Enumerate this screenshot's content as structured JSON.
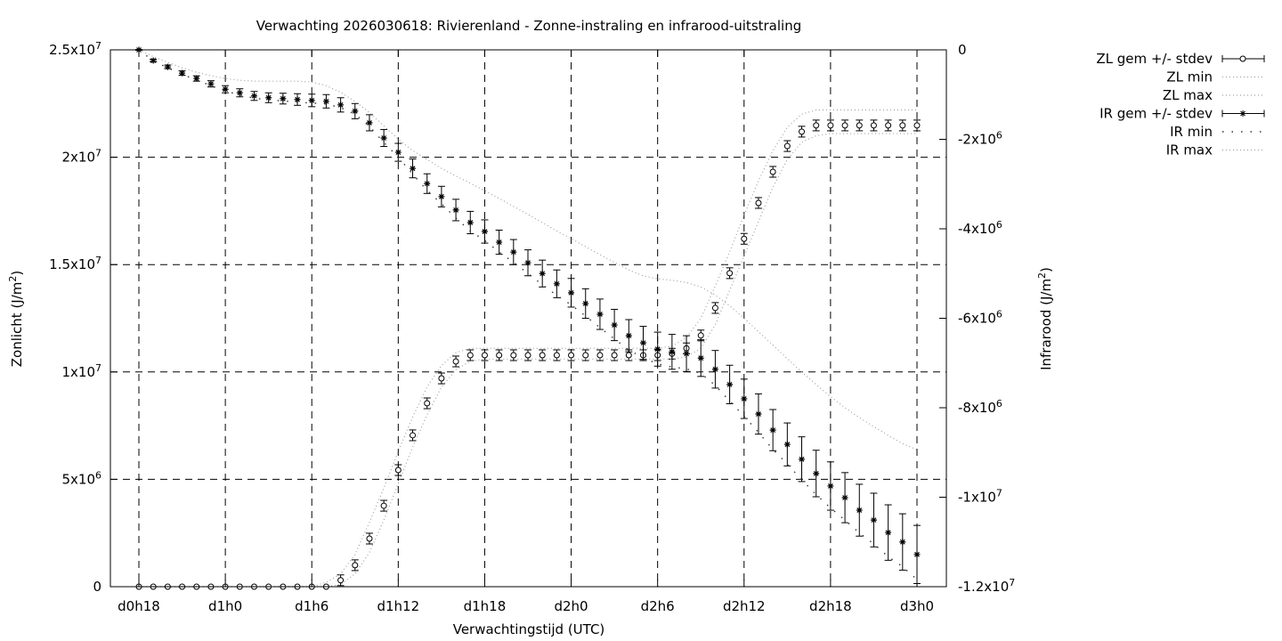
{
  "chart_data": {
    "type": "line",
    "title": "Verwachting 2026030618: Rivierenland - Zonne-instraling en infrarood-uitstraling",
    "xlabel": "Verwachtingstijd (UTC)",
    "ylabel": "Zonlicht (J/m^2)",
    "y2label": "Infrarood (J/m^2)",
    "x_unit": "hours since d0h0",
    "x_range": [
      16,
      78
    ],
    "x_start_hour": 18,
    "x_step_hours": 1,
    "xticks": [
      {
        "hour": 18,
        "label": "d0h18"
      },
      {
        "hour": 24,
        "label": "d1h0"
      },
      {
        "hour": 30,
        "label": "d1h6"
      },
      {
        "hour": 36,
        "label": "d1h12"
      },
      {
        "hour": 42,
        "label": "d1h18"
      },
      {
        "hour": 48,
        "label": "d2h0"
      },
      {
        "hour": 54,
        "label": "d2h6"
      },
      {
        "hour": 60,
        "label": "d2h12"
      },
      {
        "hour": 66,
        "label": "d2h18"
      },
      {
        "hour": 72,
        "label": "d3h0"
      }
    ],
    "ylim": [
      0,
      25000000
    ],
    "yticks": [
      {
        "value": 0,
        "label": "0"
      },
      {
        "value": 5000000,
        "label": "5x10^6"
      },
      {
        "value": 10000000,
        "label": "1x10^7"
      },
      {
        "value": 15000000,
        "label": "1.5x10^7"
      },
      {
        "value": 20000000,
        "label": "2x10^7"
      },
      {
        "value": 25000000,
        "label": "2.5x10^7"
      }
    ],
    "y2lim": [
      -12000000,
      0
    ],
    "y2ticks": [
      {
        "value": 0,
        "label": "0"
      },
      {
        "value": -2000000,
        "label": "-2x10^6"
      },
      {
        "value": -4000000,
        "label": "-4x10^6"
      },
      {
        "value": -6000000,
        "label": "-6x10^6"
      },
      {
        "value": -8000000,
        "label": "-8x10^6"
      },
      {
        "value": -10000000,
        "label": "-1x10^7"
      },
      {
        "value": -12000000,
        "label": "-1.2x10^7"
      }
    ],
    "grid": true,
    "legend_position": "outside-top-right",
    "values_scale": 1000000,
    "series": [
      {
        "name": "ZL gem +/- stdev",
        "axis": "y",
        "style": "errorbars-circle",
        "values": [
          0,
          0,
          0,
          0,
          0,
          0,
          0,
          0,
          0,
          0,
          0,
          0,
          0,
          0,
          0.3,
          1.0,
          2.24,
          3.77,
          5.43,
          7.05,
          8.54,
          9.7,
          10.49,
          10.78,
          10.78,
          10.78,
          10.78,
          10.78,
          10.78,
          10.78,
          10.78,
          10.78,
          10.78,
          10.78,
          10.78,
          10.78,
          10.78,
          10.85,
          11.1,
          11.7,
          12.98,
          14.6,
          16.2,
          17.87,
          19.32,
          20.52,
          21.19,
          21.48,
          21.48,
          21.48,
          21.48,
          21.48,
          21.48,
          21.48,
          21.48
        ],
        "stdev": [
          0,
          0,
          0,
          0,
          0,
          0,
          0,
          0,
          0,
          0,
          0,
          0,
          0,
          0,
          0.25,
          0.25,
          0.25,
          0.25,
          0.25,
          0.25,
          0.25,
          0.25,
          0.25,
          0.25,
          0.25,
          0.25,
          0.25,
          0.25,
          0.25,
          0.25,
          0.25,
          0.25,
          0.25,
          0.25,
          0.25,
          0.25,
          0.25,
          0.25,
          0.25,
          0.25,
          0.25,
          0.25,
          0.25,
          0.25,
          0.25,
          0.25,
          0.25,
          0.25,
          0.25,
          0.25,
          0.25,
          0.25,
          0.25,
          0.25,
          0.25
        ]
      },
      {
        "name": "ZL min",
        "axis": "y",
        "style": "dotted",
        "values": [
          0,
          0,
          0,
          0,
          0,
          0,
          0,
          0,
          0,
          0,
          0,
          0,
          0,
          0,
          0.1,
          0.6,
          1.6,
          3.1,
          4.8,
          6.5,
          8.0,
          9.3,
          10.1,
          10.5,
          10.6,
          10.6,
          10.6,
          10.6,
          10.6,
          10.6,
          10.6,
          10.6,
          10.6,
          10.6,
          10.6,
          10.6,
          10.6,
          10.6,
          10.7,
          11.1,
          12.2,
          13.8,
          15.4,
          17.0,
          18.6,
          19.9,
          20.7,
          21.0,
          21.1,
          21.1,
          21.1,
          21.1,
          21.1,
          21.1,
          21.1
        ]
      },
      {
        "name": "ZL max",
        "axis": "y",
        "style": "dotted",
        "values": [
          0,
          0,
          0,
          0,
          0,
          0,
          0,
          0,
          0,
          0,
          0,
          0,
          0,
          0.2,
          0.6,
          1.5,
          3.0,
          4.6,
          6.3,
          7.9,
          9.3,
          10.3,
          10.9,
          11.1,
          11.1,
          11.1,
          11.1,
          11.1,
          11.1,
          11.1,
          11.1,
          11.1,
          11.1,
          11.1,
          11.1,
          11.1,
          11.1,
          11.2,
          11.6,
          12.5,
          14.0,
          15.6,
          17.3,
          18.9,
          20.3,
          21.4,
          22.0,
          22.2,
          22.2,
          22.2,
          22.2,
          22.2,
          22.2,
          22.2,
          22.2
        ]
      },
      {
        "name": "IR gem +/- stdev",
        "axis": "y2",
        "style": "errorbars-star",
        "values": [
          0,
          -0.24,
          -0.38,
          -0.52,
          -0.64,
          -0.76,
          -0.88,
          -0.96,
          -1.03,
          -1.07,
          -1.09,
          -1.11,
          -1.13,
          -1.15,
          -1.23,
          -1.37,
          -1.63,
          -1.97,
          -2.29,
          -2.65,
          -2.99,
          -3.28,
          -3.58,
          -3.86,
          -4.06,
          -4.3,
          -4.52,
          -4.76,
          -5.0,
          -5.23,
          -5.43,
          -5.67,
          -5.91,
          -6.15,
          -6.39,
          -6.55,
          -6.69,
          -6.75,
          -6.79,
          -6.89,
          -7.14,
          -7.48,
          -7.8,
          -8.14,
          -8.5,
          -8.82,
          -9.15,
          -9.47,
          -9.75,
          -10.01,
          -10.29,
          -10.51,
          -10.79,
          -11.0,
          -11.28
        ],
        "stdev": [
          0.01,
          0.03,
          0.04,
          0.05,
          0.06,
          0.07,
          0.08,
          0.09,
          0.1,
          0.11,
          0.12,
          0.13,
          0.14,
          0.15,
          0.16,
          0.17,
          0.18,
          0.19,
          0.2,
          0.21,
          0.22,
          0.23,
          0.24,
          0.25,
          0.26,
          0.27,
          0.28,
          0.29,
          0.3,
          0.31,
          0.32,
          0.33,
          0.34,
          0.35,
          0.36,
          0.37,
          0.38,
          0.39,
          0.4,
          0.41,
          0.42,
          0.43,
          0.44,
          0.45,
          0.46,
          0.48,
          0.5,
          0.52,
          0.54,
          0.56,
          0.58,
          0.6,
          0.62,
          0.63,
          0.65
        ]
      },
      {
        "name": "IR min",
        "axis": "y2",
        "style": "sparse-dots",
        "values": [
          0,
          -0.25,
          -0.4,
          -0.55,
          -0.67,
          -0.8,
          -0.92,
          -1.01,
          -1.08,
          -1.12,
          -1.14,
          -1.17,
          -1.19,
          -1.21,
          -1.29,
          -1.44,
          -1.71,
          -2.07,
          -2.4,
          -2.78,
          -3.14,
          -3.44,
          -3.76,
          -4.05,
          -4.26,
          -4.52,
          -4.75,
          -5.0,
          -5.25,
          -5.49,
          -5.7,
          -5.95,
          -6.21,
          -6.46,
          -6.71,
          -6.88,
          -7.02,
          -7.09,
          -7.13,
          -7.23,
          -7.5,
          -7.85,
          -8.19,
          -8.55,
          -8.93,
          -9.26,
          -9.61,
          -9.94,
          -10.24,
          -10.51,
          -10.8,
          -11.04,
          -11.33,
          -11.55,
          -11.84
        ]
      },
      {
        "name": "IR max",
        "axis": "y2",
        "style": "dotted",
        "values": [
          0,
          -0.15,
          -0.28,
          -0.4,
          -0.5,
          -0.58,
          -0.64,
          -0.68,
          -0.7,
          -0.7,
          -0.7,
          -0.7,
          -0.72,
          -0.8,
          -0.95,
          -1.15,
          -1.4,
          -1.7,
          -2.0,
          -2.25,
          -2.45,
          -2.65,
          -2.82,
          -2.98,
          -3.15,
          -3.32,
          -3.5,
          -3.68,
          -3.86,
          -4.05,
          -4.22,
          -4.4,
          -4.58,
          -4.75,
          -4.92,
          -5.05,
          -5.12,
          -5.15,
          -5.2,
          -5.3,
          -5.48,
          -5.72,
          -6.0,
          -6.3,
          -6.6,
          -6.9,
          -7.2,
          -7.48,
          -7.75,
          -8.0,
          -8.22,
          -8.42,
          -8.62,
          -8.8,
          -8.94
        ]
      }
    ],
    "colors": {
      "dotted": "#a0a0a0",
      "marks": "#000000",
      "grid": "#000000"
    }
  }
}
